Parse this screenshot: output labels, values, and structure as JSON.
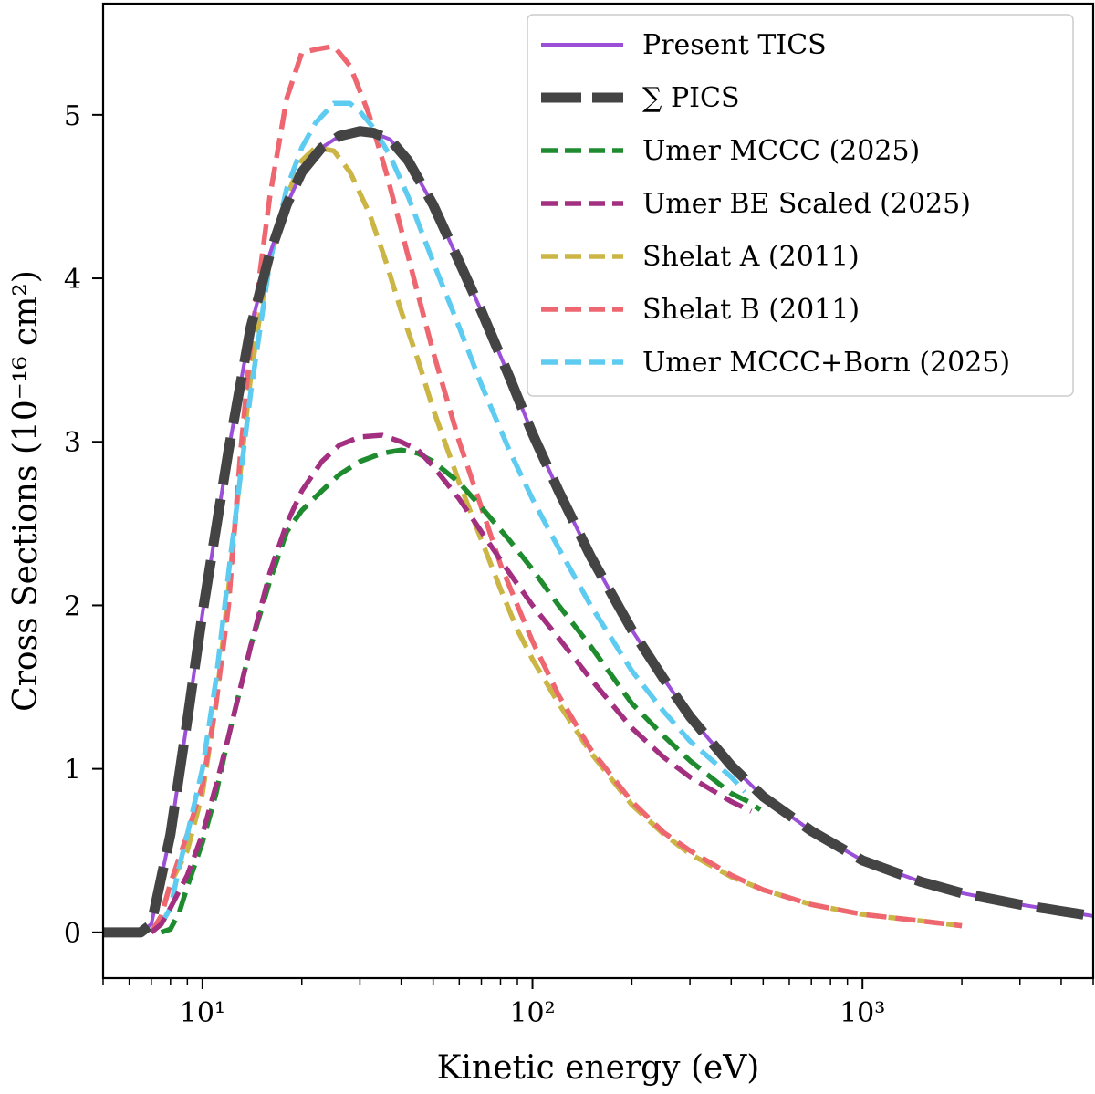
{
  "chart_data": {
    "type": "line",
    "title": "",
    "xlabel": "Kinetic energy (eV)",
    "ylabel": "Cross Sections (10⁻¹⁶ cm²)",
    "xscale": "log",
    "xlim": [
      5,
      5000
    ],
    "ylim": [
      -0.28,
      5.68
    ],
    "grid": false,
    "legend_position": "top-right",
    "x_ticks": [
      {
        "value": 10,
        "label": "10¹"
      },
      {
        "value": 100,
        "label": "10²"
      },
      {
        "value": 1000,
        "label": "10³"
      }
    ],
    "y_ticks": [
      {
        "value": 0,
        "label": "0"
      },
      {
        "value": 1,
        "label": "1"
      },
      {
        "value": 2,
        "label": "2"
      },
      {
        "value": 3,
        "label": "3"
      },
      {
        "value": 4,
        "label": "4"
      },
      {
        "value": 5,
        "label": "5"
      }
    ],
    "series": [
      {
        "name": "Present TICS",
        "color": "#9b4fd6",
        "style": "solid",
        "x": [
          5,
          6.5,
          7,
          8,
          9,
          10,
          12,
          14,
          16,
          18,
          20,
          23,
          26,
          30,
          33,
          37,
          42,
          50,
          60,
          70,
          85,
          100,
          120,
          150,
          200,
          250,
          300,
          400,
          500,
          700,
          1000,
          1500,
          2000,
          3000,
          4000,
          5000
        ],
        "y": [
          0,
          0,
          0.05,
          0.6,
          1.3,
          1.95,
          2.95,
          3.7,
          4.15,
          4.45,
          4.65,
          4.8,
          4.87,
          4.9,
          4.89,
          4.85,
          4.72,
          4.45,
          4.1,
          3.8,
          3.4,
          3.05,
          2.7,
          2.3,
          1.85,
          1.55,
          1.32,
          1.02,
          0.83,
          0.62,
          0.44,
          0.31,
          0.24,
          0.17,
          0.13,
          0.1
        ]
      },
      {
        "name": "∑ PICS",
        "color": "#444444",
        "style": "thickdash",
        "x": [
          5,
          6.5,
          7,
          8,
          9,
          10,
          12,
          14,
          16,
          18,
          20,
          23,
          26,
          30,
          33,
          37,
          42,
          50,
          60,
          70,
          85,
          100,
          120,
          150,
          200,
          250,
          300,
          400,
          500,
          700,
          1000,
          1500,
          2000,
          3000,
          4000,
          5000
        ],
        "y": [
          0,
          0,
          0.05,
          0.6,
          1.3,
          1.95,
          2.95,
          3.7,
          4.15,
          4.45,
          4.65,
          4.8,
          4.87,
          4.9,
          4.89,
          4.85,
          4.72,
          4.45,
          4.1,
          3.8,
          3.4,
          3.05,
          2.7,
          2.3,
          1.85,
          1.55,
          1.32,
          1.02,
          0.83,
          0.62,
          0.44,
          0.31,
          0.24,
          0.17,
          0.13,
          0.1
        ]
      },
      {
        "name": "Umer MCCC (2025)",
        "color": "#1e8c2e",
        "style": "dash",
        "x": [
          7.5,
          8,
          8.5,
          9,
          10,
          11,
          12,
          14,
          16,
          18,
          20,
          23,
          26,
          30,
          35,
          40,
          45,
          50,
          60,
          70,
          85,
          100,
          120,
          150,
          200,
          250,
          300,
          400,
          450,
          490
        ],
        "y": [
          0,
          0.02,
          0.12,
          0.28,
          0.55,
          0.85,
          1.2,
          1.75,
          2.15,
          2.45,
          2.58,
          2.7,
          2.8,
          2.88,
          2.93,
          2.95,
          2.93,
          2.88,
          2.75,
          2.6,
          2.4,
          2.22,
          2.0,
          1.75,
          1.4,
          1.2,
          1.05,
          0.85,
          0.8,
          0.75
        ]
      },
      {
        "name": "Umer BE Scaled (2025)",
        "color": "#a32f80",
        "style": "dash",
        "x": [
          7,
          7.5,
          8,
          9,
          10,
          11,
          12,
          14,
          16,
          18,
          20,
          23,
          26,
          30,
          35,
          40,
          45,
          50,
          60,
          70,
          85,
          100,
          120,
          150,
          200,
          250,
          300,
          400,
          460
        ],
        "y": [
          0,
          0.05,
          0.15,
          0.35,
          0.6,
          0.9,
          1.2,
          1.75,
          2.2,
          2.5,
          2.7,
          2.88,
          2.98,
          3.03,
          3.04,
          3.0,
          2.95,
          2.85,
          2.65,
          2.45,
          2.2,
          2.0,
          1.8,
          1.55,
          1.25,
          1.07,
          0.95,
          0.8,
          0.74
        ]
      },
      {
        "name": "Shelat A (2011)",
        "color": "#cbb544",
        "style": "dash",
        "x": [
          7,
          7.5,
          8,
          9,
          10,
          11,
          12,
          13,
          14,
          15,
          16,
          18,
          20,
          22,
          25,
          28,
          32,
          36,
          40,
          45,
          50,
          60,
          70,
          80,
          90,
          100,
          120,
          150,
          200,
          250,
          300,
          400,
          500,
          700,
          1000,
          1500,
          2000
        ],
        "y": [
          0,
          0.1,
          0.3,
          0.5,
          0.85,
          1.4,
          2.1,
          2.8,
          3.4,
          3.8,
          4.1,
          4.5,
          4.72,
          4.8,
          4.78,
          4.65,
          4.4,
          4.1,
          3.8,
          3.5,
          3.2,
          2.75,
          2.4,
          2.1,
          1.85,
          1.67,
          1.4,
          1.1,
          0.78,
          0.6,
          0.48,
          0.34,
          0.26,
          0.17,
          0.11,
          0.07,
          0.04
        ]
      },
      {
        "name": "Shelat B (2011)",
        "color": "#ee6770",
        "style": "dash",
        "x": [
          7,
          7.5,
          8,
          9,
          10,
          11,
          12,
          13,
          14,
          16,
          18,
          20,
          22,
          25,
          28,
          32,
          36,
          40,
          45,
          50,
          60,
          70,
          80,
          90,
          100,
          120,
          150,
          200,
          250,
          300,
          400,
          500,
          700,
          1000,
          1500,
          2000
        ],
        "y": [
          0,
          0.1,
          0.3,
          0.6,
          0.9,
          1.4,
          2.0,
          2.9,
          3.6,
          4.5,
          5.1,
          5.38,
          5.4,
          5.42,
          5.3,
          5.0,
          4.65,
          4.3,
          3.9,
          3.55,
          3.0,
          2.6,
          2.25,
          2.0,
          1.78,
          1.45,
          1.12,
          0.8,
          0.61,
          0.5,
          0.35,
          0.26,
          0.17,
          0.11,
          0.07,
          0.04
        ]
      },
      {
        "name": "Umer MCCC+Born (2025)",
        "color": "#5ecbf0",
        "style": "dash",
        "x": [
          7.5,
          8,
          8.5,
          9,
          10,
          11,
          12,
          14,
          16,
          18,
          20,
          22,
          25,
          28,
          30,
          33,
          37,
          42,
          50,
          60,
          70,
          85,
          100,
          120,
          150,
          200,
          250,
          300,
          400,
          440
        ],
        "y": [
          0.05,
          0.15,
          0.4,
          0.6,
          1.0,
          1.55,
          2.2,
          3.3,
          4.1,
          4.55,
          4.8,
          4.95,
          5.07,
          5.07,
          5.02,
          4.92,
          4.75,
          4.5,
          4.1,
          3.7,
          3.35,
          2.95,
          2.65,
          2.35,
          2.0,
          1.6,
          1.35,
          1.17,
          0.95,
          0.86
        ]
      }
    ]
  }
}
